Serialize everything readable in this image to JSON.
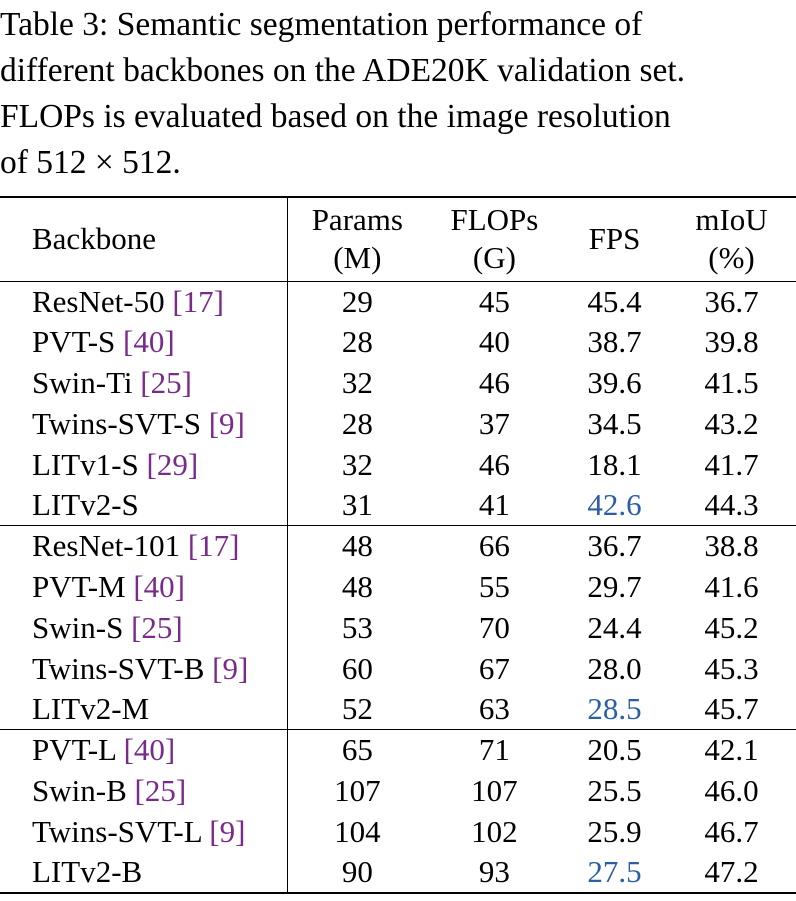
{
  "caption": {
    "lines": [
      "Table 3:  Semantic segmentation performance of",
      "different backbones on the ADE20K validation set.",
      "FLOPs is evaluated based on the image resolution",
      "of 512 × 512."
    ]
  },
  "table": {
    "headers": {
      "backbone": "Backbone",
      "params_1": "Params",
      "params_2": "(M)",
      "flops_1": "FLOPs",
      "flops_2": "(G)",
      "fps": "FPS",
      "miou_1": "mIoU",
      "miou_2": "(%)"
    },
    "rows": [
      {
        "name": "ResNet-50 ",
        "cite": "[17]",
        "params": "29",
        "flops": "45",
        "fps": "45.4",
        "miou": "36.7"
      },
      {
        "name": "PVT-S ",
        "cite": "[40]",
        "params": "28",
        "flops": "40",
        "fps": "38.7",
        "miou": "39.8"
      },
      {
        "name": "Swin-Ti ",
        "cite": "[25]",
        "params": "32",
        "flops": "46",
        "fps": "39.6",
        "miou": "41.5"
      },
      {
        "name": "Twins-SVT-S ",
        "cite": "[9]",
        "params": "28",
        "flops": "37",
        "fps": "34.5",
        "miou": "43.2"
      },
      {
        "name": "LITv1-S ",
        "cite": "[29]",
        "params": "32",
        "flops": "46",
        "fps": "18.1",
        "miou": "41.7"
      },
      {
        "name": "LITv2-S",
        "cite": "",
        "params": "31",
        "flops": "41",
        "fps": "42.6",
        "miou": "44.3"
      },
      {
        "name": "ResNet-101 ",
        "cite": "[17]",
        "params": "48",
        "flops": "66",
        "fps": "36.7",
        "miou": "38.8"
      },
      {
        "name": "PVT-M ",
        "cite": "[40]",
        "params": "48",
        "flops": "55",
        "fps": "29.7",
        "miou": "41.6"
      },
      {
        "name": "Swin-S ",
        "cite": "[25]",
        "params": "53",
        "flops": "70",
        "fps": "24.4",
        "miou": "45.2"
      },
      {
        "name": "Twins-SVT-B ",
        "cite": "[9]",
        "params": "60",
        "flops": "67",
        "fps": "28.0",
        "miou": "45.3"
      },
      {
        "name": "LITv2-M",
        "cite": "",
        "params": "52",
        "flops": "63",
        "fps": "28.5",
        "miou": "45.7"
      },
      {
        "name": "PVT-L ",
        "cite": "[40]",
        "params": "65",
        "flops": "71",
        "fps": "20.5",
        "miou": "42.1"
      },
      {
        "name": "Swin-B ",
        "cite": "[25]",
        "params": "107",
        "flops": "107",
        "fps": "25.5",
        "miou": "46.0"
      },
      {
        "name": "Twins-SVT-L ",
        "cite": "[9]",
        "params": "104",
        "flops": "102",
        "fps": "25.9",
        "miou": "46.7"
      },
      {
        "name": "LITv2-B",
        "cite": "",
        "params": "90",
        "flops": "93",
        "fps": "27.5",
        "miou": "47.2"
      }
    ]
  },
  "colors": {
    "citation": "#7a2a8a",
    "highlight_fps": "#2a5fa8"
  }
}
